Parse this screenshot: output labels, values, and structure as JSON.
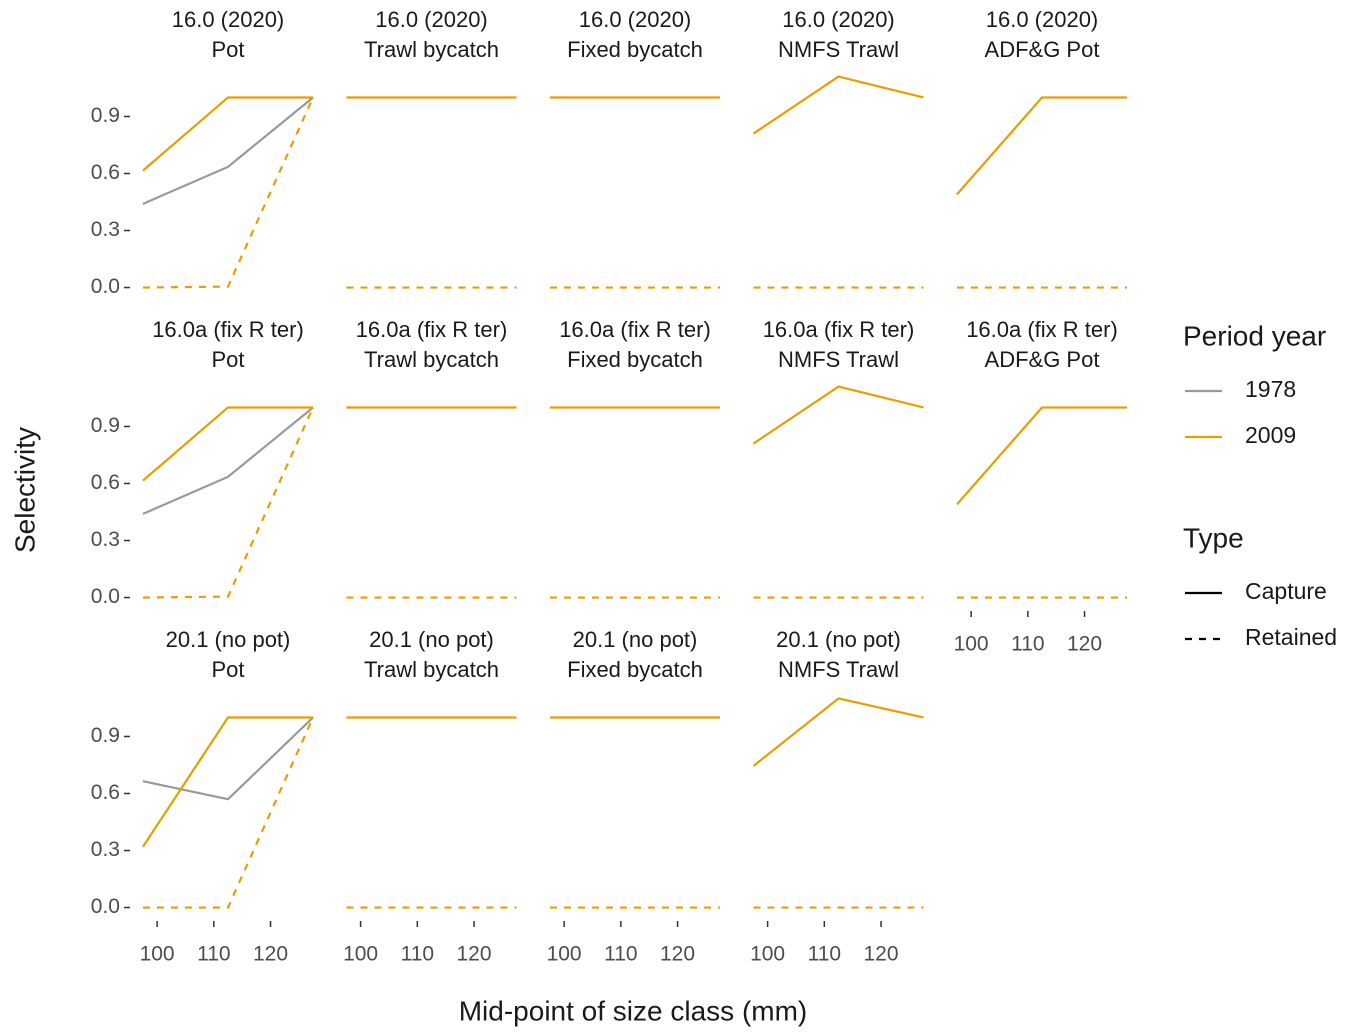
{
  "chart_data": {
    "type": "line",
    "x_label": "Mid-point of size class (mm)",
    "y_label": "Selectivity",
    "x": [
      97.5,
      112.5,
      127.5
    ],
    "xlim": [
      95.75,
      129.25
    ],
    "ylim": [
      -0.055,
      1.155
    ],
    "xticks": [
      100,
      110,
      120
    ],
    "yticks": [
      {
        "value": 0,
        "label": "0.0"
      },
      0.3,
      0.6,
      0.9
    ],
    "columns": 5,
    "legends": [
      {
        "title": "Period year",
        "entries": [
          {
            "label": "1978",
            "color": "#999999",
            "dash": "solid"
          },
          {
            "label": "2009",
            "color": "#E69F00",
            "dash": "solid"
          }
        ]
      },
      {
        "title": "Type",
        "entries": [
          {
            "label": "Capture",
            "color": "#000000",
            "dash": "solid"
          },
          {
            "label": "Retained",
            "color": "#000000",
            "dash": "dashed"
          }
        ]
      }
    ],
    "panels": [
      {
        "title": [
          "16.0 (2020)",
          "Pot"
        ],
        "series": [
          {
            "color": "#999999",
            "dash": "solid",
            "values": [
              0.44,
              0.635,
              1.0
            ]
          },
          {
            "color": "#E69F00",
            "dash": "solid",
            "values": [
              0.615,
              1.0,
              1.0
            ]
          },
          {
            "color": "#E69F00",
            "dash": "dashed",
            "values": [
              0,
              0.005,
              1.0
            ]
          }
        ]
      },
      {
        "title": [
          "16.0 (2020)",
          "Trawl bycatch"
        ],
        "series": [
          {
            "color": "#E69F00",
            "dash": "solid",
            "values": [
              1.0,
              1.0,
              1.0
            ]
          },
          {
            "color": "#E69F00",
            "dash": "dashed",
            "values": [
              0,
              0,
              0
            ]
          }
        ]
      },
      {
        "title": [
          "16.0 (2020)",
          "Fixed bycatch"
        ],
        "series": [
          {
            "color": "#E69F00",
            "dash": "solid",
            "values": [
              1.0,
              1.0,
              1.0
            ]
          },
          {
            "color": "#E69F00",
            "dash": "dashed",
            "values": [
              0,
              0,
              0
            ]
          }
        ]
      },
      {
        "title": [
          "16.0 (2020)",
          "NMFS Trawl"
        ],
        "series": [
          {
            "color": "#E69F00",
            "dash": "solid",
            "values": [
              0.81,
              1.11,
              1.0
            ]
          },
          {
            "color": "#E69F00",
            "dash": "dashed",
            "values": [
              0,
              0,
              0
            ]
          }
        ]
      },
      {
        "title": [
          "16.0 (2020)",
          "ADF&G Pot"
        ],
        "series": [
          {
            "color": "#E69F00",
            "dash": "solid",
            "values": [
              0.49,
              1.0,
              1.0
            ]
          },
          {
            "color": "#E69F00",
            "dash": "dashed",
            "values": [
              0,
              0,
              0
            ]
          }
        ]
      },
      {
        "title": [
          "16.0a (fix R ter)",
          "Pot"
        ],
        "series": [
          {
            "color": "#999999",
            "dash": "solid",
            "values": [
              0.44,
              0.635,
              1.0
            ]
          },
          {
            "color": "#E69F00",
            "dash": "solid",
            "values": [
              0.615,
              1.0,
              1.0
            ]
          },
          {
            "color": "#E69F00",
            "dash": "dashed",
            "values": [
              0,
              0.005,
              1.0
            ]
          }
        ]
      },
      {
        "title": [
          "16.0a (fix R ter)",
          "Trawl bycatch"
        ],
        "series": [
          {
            "color": "#E69F00",
            "dash": "solid",
            "values": [
              1.0,
              1.0,
              1.0
            ]
          },
          {
            "color": "#E69F00",
            "dash": "dashed",
            "values": [
              0,
              0,
              0
            ]
          }
        ]
      },
      {
        "title": [
          "16.0a (fix R ter)",
          "Fixed bycatch"
        ],
        "series": [
          {
            "color": "#E69F00",
            "dash": "solid",
            "values": [
              1.0,
              1.0,
              1.0
            ]
          },
          {
            "color": "#E69F00",
            "dash": "dashed",
            "values": [
              0,
              0,
              0
            ]
          }
        ]
      },
      {
        "title": [
          "16.0a (fix R ter)",
          "NMFS Trawl"
        ],
        "series": [
          {
            "color": "#E69F00",
            "dash": "solid",
            "values": [
              0.81,
              1.11,
              1.0
            ]
          },
          {
            "color": "#E69F00",
            "dash": "dashed",
            "values": [
              0,
              0,
              0
            ]
          }
        ]
      },
      {
        "title": [
          "16.0a (fix R ter)",
          "ADF&G Pot"
        ],
        "series": [
          {
            "color": "#E69F00",
            "dash": "solid",
            "values": [
              0.49,
              1.0,
              1.0
            ]
          },
          {
            "color": "#E69F00",
            "dash": "dashed",
            "values": [
              0,
              0,
              0
            ]
          }
        ]
      },
      {
        "title": [
          "20.1 (no pot)",
          "Pot"
        ],
        "series": [
          {
            "color": "#999999",
            "dash": "solid",
            "values": [
              0.665,
              0.57,
              1.0
            ]
          },
          {
            "color": "#E69F00",
            "dash": "solid",
            "values": [
              0.32,
              1.0,
              1.0
            ]
          },
          {
            "color": "#E69F00",
            "dash": "dashed",
            "values": [
              0,
              0,
              1.0
            ]
          }
        ]
      },
      {
        "title": [
          "20.1 (no pot)",
          "Trawl bycatch"
        ],
        "series": [
          {
            "color": "#E69F00",
            "dash": "solid",
            "values": [
              1.0,
              1.0,
              1.0
            ]
          },
          {
            "color": "#E69F00",
            "dash": "dashed",
            "values": [
              0,
              0,
              0
            ]
          }
        ]
      },
      {
        "title": [
          "20.1 (no pot)",
          "Fixed bycatch"
        ],
        "series": [
          {
            "color": "#E69F00",
            "dash": "solid",
            "values": [
              1.0,
              1.0,
              1.0
            ]
          },
          {
            "color": "#E69F00",
            "dash": "dashed",
            "values": [
              0,
              0,
              0
            ]
          }
        ]
      },
      {
        "title": [
          "20.1 (no pot)",
          "NMFS Trawl"
        ],
        "series": [
          {
            "color": "#E69F00",
            "dash": "solid",
            "values": [
              0.745,
              1.1,
              1.0
            ]
          },
          {
            "color": "#E69F00",
            "dash": "dashed",
            "values": [
              0,
              0,
              0
            ]
          }
        ]
      }
    ]
  }
}
